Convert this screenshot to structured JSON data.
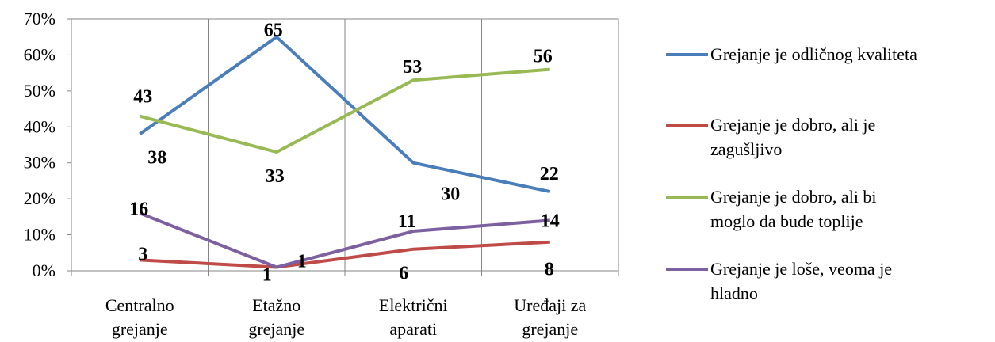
{
  "chart_data": {
    "type": "line",
    "categories": [
      [
        "Centralno",
        "grejanje"
      ],
      [
        "Etažno",
        "grejanje"
      ],
      [
        "Električni",
        "aparati"
      ],
      [
        "Uređaji za",
        "grejanje"
      ]
    ],
    "y_tick_labels": [
      "0%",
      "10%",
      "20%",
      "30%",
      "40%",
      "50%",
      "60%",
      "70%"
    ],
    "ylim": [
      0,
      70
    ],
    "grid": "vertical category lines",
    "legend": "right",
    "series": [
      {
        "name": [
          "Grejanje je odličnog kvaliteta"
        ],
        "values": [
          38,
          65,
          30,
          22
        ],
        "labels": [
          "38",
          "65",
          "30",
          "22"
        ],
        "color": "#4a7ebb"
      },
      {
        "name": [
          "Grejanje je dobro, ali je",
          "zagušljivo"
        ],
        "values": [
          3,
          1,
          6,
          8
        ],
        "labels": [
          "3",
          "1",
          "6",
          "8"
        ],
        "color": "#be4b48"
      },
      {
        "name": [
          "Grejanje je dobro, ali bi",
          "moglo da bude toplije"
        ],
        "values": [
          43,
          33,
          53,
          56
        ],
        "labels": [
          "43",
          "33",
          "53",
          "56"
        ],
        "color": "#98b954"
      },
      {
        "name": [
          "Grejanje je loše, veoma je",
          "hladno"
        ],
        "values": [
          16,
          1,
          11,
          14
        ],
        "labels": [
          "16",
          "1",
          "11",
          "14"
        ],
        "color": "#7d60a0"
      }
    ]
  }
}
